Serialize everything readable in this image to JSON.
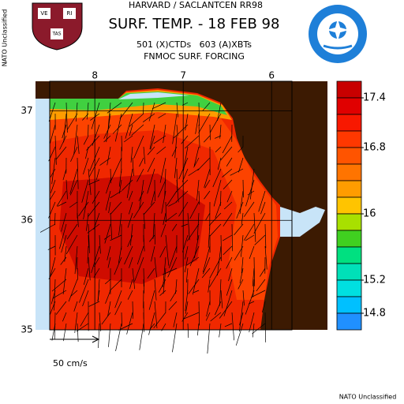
{
  "header": {
    "institution": "HARVARD / SACLANTCEN RR98",
    "title": "SURF. TEMP. - 18 FEB 98",
    "subtitle": "501 (X)CTDs   603 (A)XBTs",
    "forcing": "FNMOC SURF. FORCING",
    "shield_words": [
      "VE",
      "RI",
      "TAS"
    ]
  },
  "map": {
    "xlim": [
      8.51,
      5.77
    ],
    "ylim": [
      35,
      37.27
    ],
    "xticks": [
      8,
      7,
      6
    ],
    "yticks": [
      37,
      36,
      35
    ],
    "scale_label": "50 cm/s"
  },
  "colorbar": {
    "range": [
      14.6,
      17.6
    ],
    "ticks": [
      17.4,
      16.8,
      16.0,
      15.2,
      14.8
    ],
    "colors": [
      "#c80000",
      "#e00000",
      "#f81800",
      "#ff3800",
      "#ff5400",
      "#ff7400",
      "#ff9c00",
      "#ffc400",
      "#a8e000",
      "#40d020",
      "#00e080",
      "#00e0b8",
      "#00e0e0",
      "#00c0ff",
      "#2090ff"
    ]
  },
  "classification": {
    "side": "NATO Unclassified",
    "bottom": "NATO Unclassified"
  }
}
